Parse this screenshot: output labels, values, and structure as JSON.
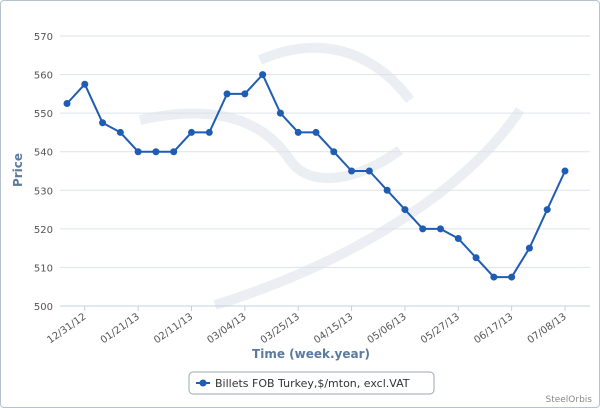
{
  "chart_data": {
    "type": "line",
    "xlabel": "Time (week.year)",
    "ylabel": "Price",
    "ylim": [
      500,
      570
    ],
    "ytick_step": 10,
    "grid": "horizontal",
    "legend_position": "bottom-center",
    "x_ticks": [
      "12/31/12",
      "01/21/13",
      "02/11/13",
      "03/04/13",
      "03/25/13",
      "04/15/13",
      "05/06/13",
      "05/27/13",
      "06/17/13",
      "07/08/13"
    ],
    "series": [
      {
        "name": "Billets FOB Turkey,$/mton, excl.VAT",
        "color": "#1f5cb3",
        "values": [
          552.5,
          557.5,
          547.5,
          545,
          540,
          540,
          540,
          545,
          545,
          555,
          555,
          560,
          550,
          545,
          545,
          540,
          535,
          535,
          530,
          525,
          520,
          520,
          517.5,
          512.5,
          507.5,
          507.5,
          515,
          525,
          535
        ]
      }
    ]
  },
  "credit": "SteelOrbis"
}
